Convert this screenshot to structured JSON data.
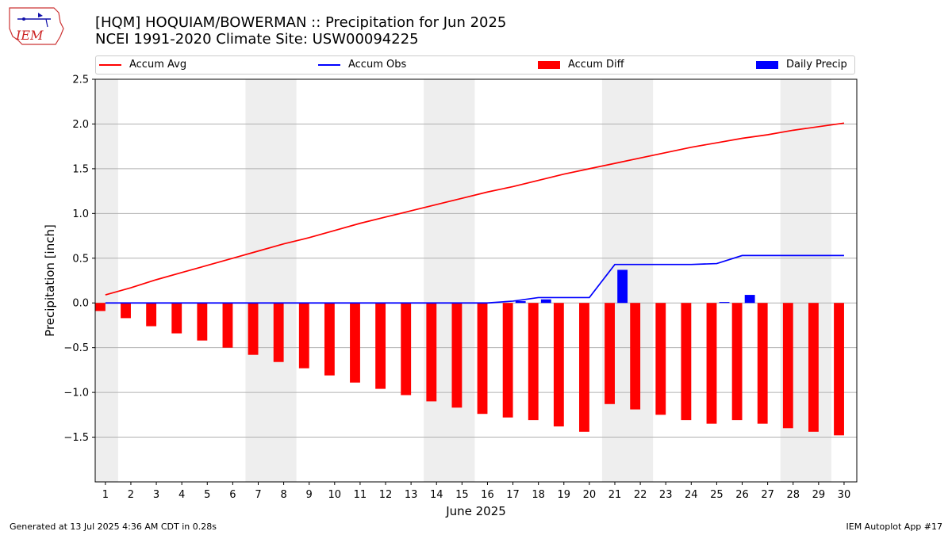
{
  "header": {
    "title_line1": "[HQM] HOQUIAM/BOWERMAN :: Precipitation for Jun 2025",
    "title_line2": "NCEI 1991-2020 Climate Site: USW00094225",
    "logo_text": "IEM"
  },
  "footer": {
    "left": "Generated at 13 Jul 2025 4:36 AM CDT in 0.28s",
    "right": "IEM Autoplot App #17"
  },
  "colors": {
    "avg": "#ff0000",
    "obs": "#0000ff",
    "diff": "#ff0000",
    "daily": "#0000ff",
    "weekend_shade": "#eeeeee",
    "grid": "#b0b0b0"
  },
  "chart_data": {
    "type": "bar",
    "xlabel": "June 2025",
    "ylabel": "Precipitation [inch]",
    "ylim": [
      -2.0,
      2.5
    ],
    "yticks": [
      -1.5,
      -1.0,
      -0.5,
      0.0,
      0.5,
      1.0,
      1.5,
      2.0,
      2.5
    ],
    "ytick_labels": [
      "−1.5",
      "−1.0",
      "−0.5",
      "0.0",
      "0.5",
      "1.0",
      "1.5",
      "2.0",
      "2.5"
    ],
    "grid": "horizontal",
    "legend_position": "top",
    "days": [
      1,
      2,
      3,
      4,
      5,
      6,
      7,
      8,
      9,
      10,
      11,
      12,
      13,
      14,
      15,
      16,
      17,
      18,
      19,
      20,
      21,
      22,
      23,
      24,
      25,
      26,
      27,
      28,
      29,
      30
    ],
    "weekend_shading": [
      [
        1,
        1
      ],
      [
        7,
        8
      ],
      [
        14,
        15
      ],
      [
        21,
        22
      ],
      [
        28,
        29
      ]
    ],
    "series": [
      {
        "name": "Accum Avg",
        "kind": "line",
        "values": [
          0.09,
          0.17,
          0.26,
          0.34,
          0.42,
          0.5,
          0.58,
          0.66,
          0.73,
          0.81,
          0.89,
          0.96,
          1.03,
          1.1,
          1.17,
          1.24,
          1.3,
          1.37,
          1.44,
          1.5,
          1.56,
          1.62,
          1.68,
          1.74,
          1.79,
          1.84,
          1.88,
          1.93,
          1.97,
          2.01
        ]
      },
      {
        "name": "Accum Obs",
        "kind": "line",
        "values": [
          0,
          0,
          0,
          0,
          0,
          0,
          0,
          0,
          0,
          0,
          0,
          0,
          0,
          0,
          0,
          0,
          0.02,
          0.06,
          0.06,
          0.06,
          0.43,
          0.43,
          0.43,
          0.43,
          0.44,
          0.53,
          0.53,
          0.53,
          0.53,
          0.53
        ]
      },
      {
        "name": "Accum Diff",
        "kind": "bar",
        "values": [
          -0.09,
          -0.17,
          -0.26,
          -0.34,
          -0.42,
          -0.5,
          -0.58,
          -0.66,
          -0.73,
          -0.81,
          -0.89,
          -0.96,
          -1.03,
          -1.1,
          -1.17,
          -1.24,
          -1.28,
          -1.31,
          -1.38,
          -1.44,
          -1.13,
          -1.19,
          -1.25,
          -1.31,
          -1.35,
          -1.31,
          -1.35,
          -1.4,
          -1.44,
          -1.48
        ]
      },
      {
        "name": "Daily Precip",
        "kind": "bar",
        "values": [
          0,
          0,
          0,
          0,
          0,
          0,
          0,
          0,
          0,
          0,
          0,
          0,
          0,
          0,
          0,
          0,
          0.02,
          0.04,
          0,
          0,
          0.37,
          0,
          0,
          0,
          0.01,
          0.09,
          0,
          0,
          0,
          0
        ]
      }
    ]
  }
}
